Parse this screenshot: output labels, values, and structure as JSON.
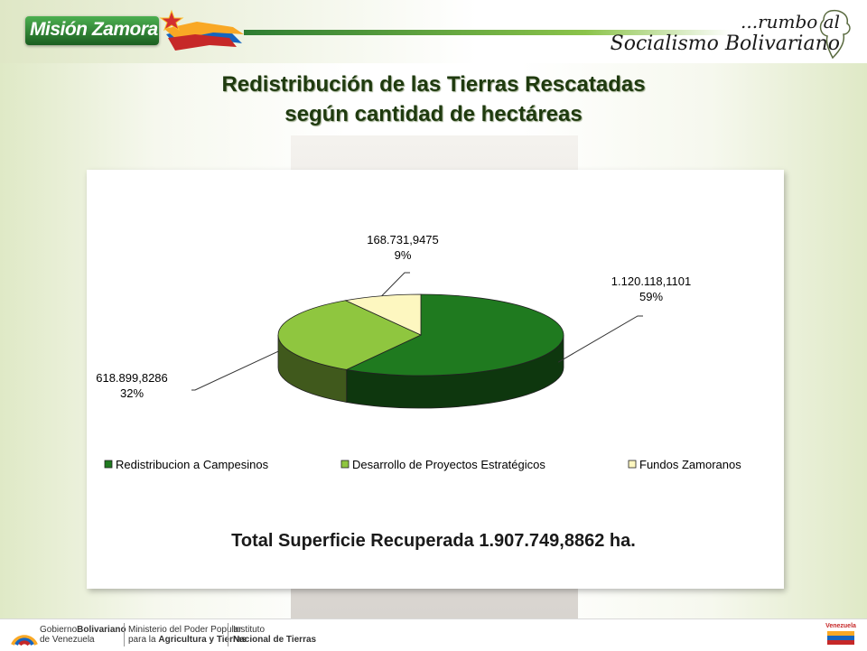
{
  "header": {
    "logo_text": "Misión Zamora",
    "slogan_line1": "...rumbo al",
    "slogan_line2": "Socialismo Bolivariano"
  },
  "title_line1": "Redistribución de las Tierras Rescatadas",
  "title_line2": "según cantidad de hectáreas",
  "chart_data": {
    "type": "pie",
    "title": "",
    "slices": [
      {
        "label": "Redistribucion a Campesinos",
        "value": 1120118.1101,
        "value_label": "1.120.118,1101",
        "percent_label": "59%",
        "color": "#1f7a1f"
      },
      {
        "label": "Desarrollo de Proyectos Estratégicos",
        "value": 618899.8286,
        "value_label": "618.899,8286",
        "percent_label": "32%",
        "color": "#8fc63f"
      },
      {
        "label": "Fundos Zamoranos",
        "value": 168731.9475,
        "value_label": "168.731,9475",
        "percent_label": "9%",
        "color": "#fdf7c0"
      }
    ],
    "legend_position": "bottom",
    "style": "3d"
  },
  "total_text": "Total Superficie Recuperada 1.907.749,8862  ha.",
  "footer": {
    "gob_line1a": "Gobierno",
    "gob_line1b": "Bolivariano",
    "gob_line2": "de Venezuela",
    "min_line1": "Ministerio del Poder Popular",
    "min_line2a": "para la ",
    "min_line2b": "Agricultura y Tierras",
    "inst_line1": "Instituto",
    "inst_line2": "Nacional de Tierras",
    "flag_text": "Venezuela"
  }
}
